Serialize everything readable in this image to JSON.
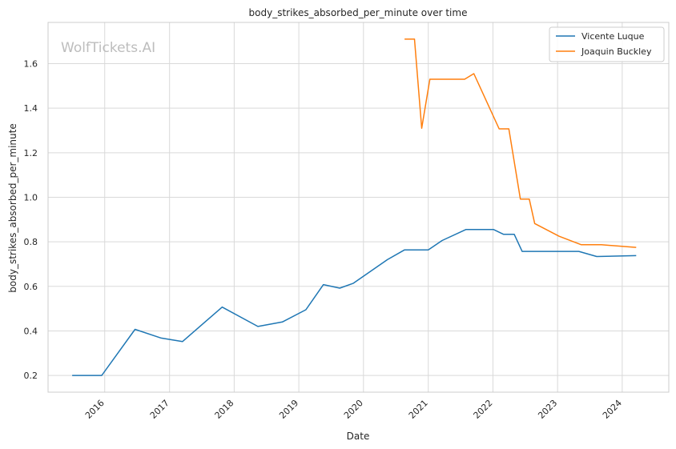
{
  "watermark": "WolfTickets.AI",
  "chart_data": {
    "type": "line",
    "title": "body_strikes_absorbed_per_minute over time",
    "xlabel": "Date",
    "ylabel": "body_strikes_absorbed_per_minute",
    "xlim": [
      "2015-02-15",
      "2024-09-20"
    ],
    "ylim": [
      0.125,
      1.785
    ],
    "x_ticks": [
      "2016-01-01",
      "2017-01-01",
      "2018-01-01",
      "2019-01-01",
      "2020-01-01",
      "2021-01-01",
      "2022-01-01",
      "2023-01-01",
      "2024-01-01"
    ],
    "x_tick_labels": [
      "2016",
      "2017",
      "2018",
      "2019",
      "2020",
      "2021",
      "2022",
      "2023",
      "2024"
    ],
    "y_ticks": [
      0.2,
      0.4,
      0.6,
      0.8,
      1.0,
      1.2,
      1.4,
      1.6
    ],
    "y_tick_labels": [
      "0.2",
      "0.4",
      "0.6",
      "0.8",
      "1.0",
      "1.2",
      "1.4",
      "1.6"
    ],
    "grid": true,
    "legend_position": "top-right",
    "series": [
      {
        "name": "Vicente Luque",
        "color": "#1f77b4",
        "points": [
          [
            "2015-07-01",
            0.2
          ],
          [
            "2015-12-15",
            0.2
          ],
          [
            "2016-06-20",
            0.407
          ],
          [
            "2016-11-15",
            0.368
          ],
          [
            "2017-03-15",
            0.352
          ],
          [
            "2017-10-25",
            0.507
          ],
          [
            "2018-05-15",
            0.42
          ],
          [
            "2018-09-30",
            0.44
          ],
          [
            "2019-02-10",
            0.495
          ],
          [
            "2019-05-20",
            0.608
          ],
          [
            "2019-08-20",
            0.592
          ],
          [
            "2019-11-05",
            0.614
          ],
          [
            "2020-05-15",
            0.72
          ],
          [
            "2020-08-20",
            0.764
          ],
          [
            "2021-01-01",
            0.764
          ],
          [
            "2021-03-20",
            0.806
          ],
          [
            "2021-08-01",
            0.855
          ],
          [
            "2022-01-05",
            0.855
          ],
          [
            "2022-03-01",
            0.834
          ],
          [
            "2022-05-01",
            0.834
          ],
          [
            "2022-06-15",
            0.757
          ],
          [
            "2023-01-01",
            0.757
          ],
          [
            "2023-05-01",
            0.757
          ],
          [
            "2023-08-10",
            0.734
          ],
          [
            "2024-03-20",
            0.738
          ]
        ]
      },
      {
        "name": "Joaquin Buckley",
        "color": "#ff7f0e",
        "points": [
          [
            "2020-08-20",
            1.71
          ],
          [
            "2020-10-15",
            1.71
          ],
          [
            "2020-11-25",
            1.31
          ],
          [
            "2021-01-10",
            1.53
          ],
          [
            "2021-07-25",
            1.53
          ],
          [
            "2021-09-15",
            1.555
          ],
          [
            "2022-02-05",
            1.307
          ],
          [
            "2022-04-01",
            1.307
          ],
          [
            "2022-06-05",
            0.992
          ],
          [
            "2022-07-25",
            0.992
          ],
          [
            "2022-08-25",
            0.882
          ],
          [
            "2023-01-10",
            0.825
          ],
          [
            "2023-05-15",
            0.787
          ],
          [
            "2023-09-05",
            0.787
          ],
          [
            "2024-03-20",
            0.775
          ]
        ]
      }
    ]
  }
}
